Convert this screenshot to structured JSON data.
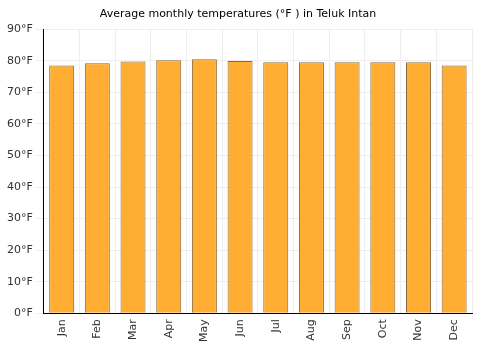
{
  "chart_data": {
    "type": "bar",
    "title": "Average monthly temperatures (°F ) in Teluk Intan",
    "categories": [
      "Jan",
      "Feb",
      "Mar",
      "Apr",
      "May",
      "Jun",
      "Jul",
      "Aug",
      "Sep",
      "Oct",
      "Nov",
      "Dec"
    ],
    "values": [
      78.5,
      79.2,
      79.8,
      80.2,
      80.5,
      79.9,
      79.5,
      79.5,
      79.5,
      79.5,
      79.5,
      78.5
    ],
    "color": "#ffae33",
    "ylim": [
      0,
      90
    ],
    "yticks": [
      {
        "value": 0,
        "label": "0°F"
      },
      {
        "value": 10,
        "label": "10°F"
      },
      {
        "value": 20,
        "label": "20°F"
      },
      {
        "value": 30,
        "label": "30°F"
      },
      {
        "value": 40,
        "label": "40°F"
      },
      {
        "value": 50,
        "label": "50°F"
      },
      {
        "value": 60,
        "label": "60°F"
      },
      {
        "value": 70,
        "label": "70°F"
      },
      {
        "value": 80,
        "label": "80°F"
      },
      {
        "value": 90,
        "label": "90°F"
      }
    ],
    "grid": true
  }
}
